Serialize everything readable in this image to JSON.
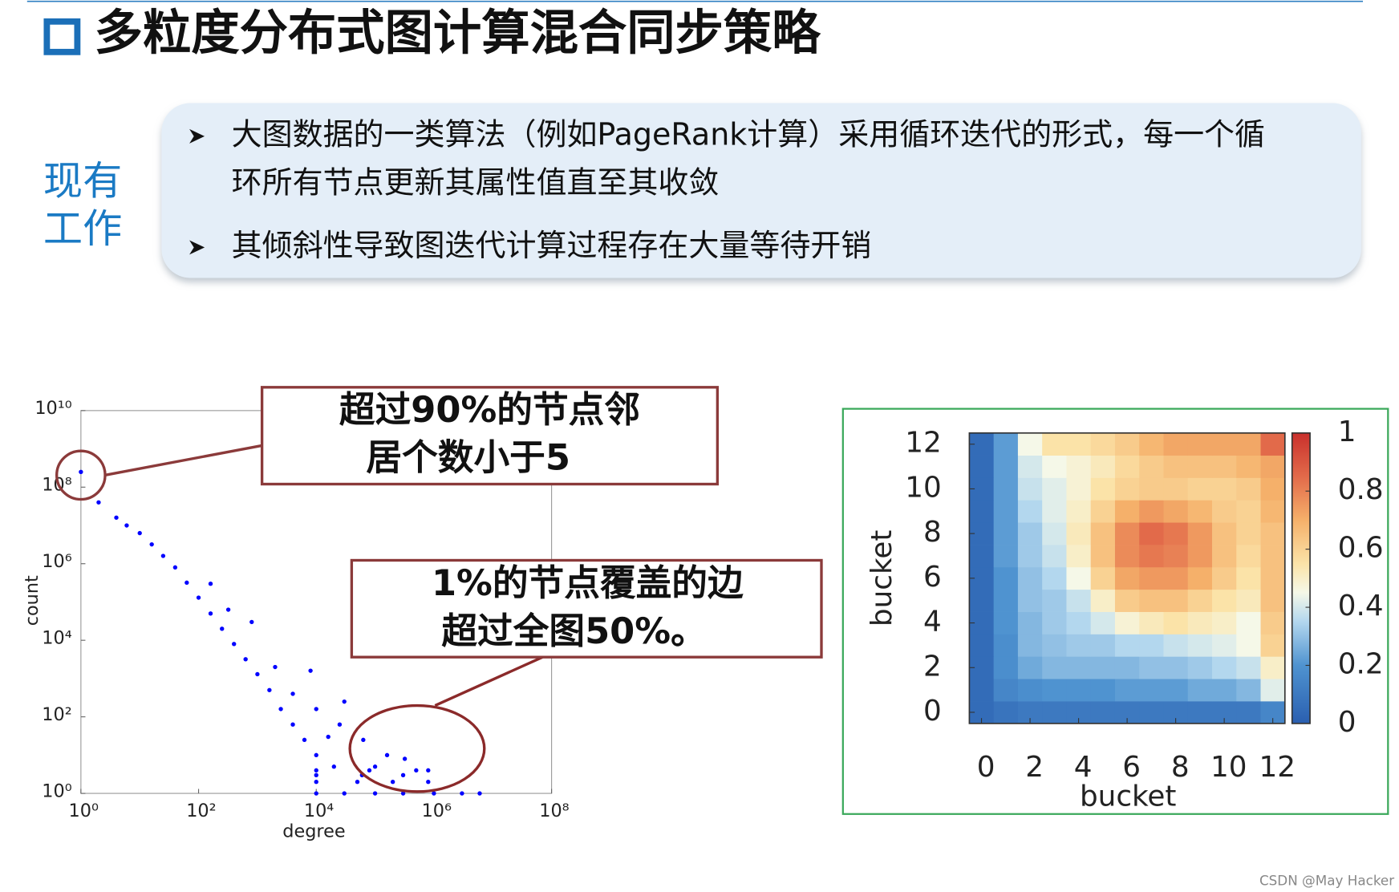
{
  "header": {
    "title": "多粒度分布式图计算混合同步策略"
  },
  "sidebar": [
    "现有",
    "工作"
  ],
  "bullets": [
    [
      "大图数据的一类算法（例如PageRank计算）采用循环迭代的形式，每一个循",
      "环所有节点更新其属性值直至其收敛"
    ],
    [
      "其倾斜性导致图迭代计算过程存在大量等待开销"
    ]
  ],
  "callouts": [
    [
      "超过90%的节点邻",
      "居个数小于5"
    ],
    [
      "1%的节点覆盖的边",
      "超过全图50%。"
    ]
  ],
  "watermark": "CSDN @May Hacker",
  "chart_data": [
    {
      "type": "scatter",
      "x_label": "degree",
      "y_label": "count",
      "log_x": true,
      "log_y": true,
      "color": "#0000ff",
      "xlim": [
        1,
        100000000
      ],
      "ylim": [
        1,
        10000000000
      ],
      "xticks": [
        {
          "value": 1,
          "label": "10⁰"
        },
        {
          "value": 100,
          "label": "10²"
        },
        {
          "value": 10000,
          "label": "10⁴"
        },
        {
          "value": 1000000,
          "label": "10⁶"
        },
        {
          "value": 100000000,
          "label": "10⁸"
        }
      ],
      "yticks": [
        {
          "value": 1,
          "label": "10⁰"
        },
        {
          "value": 100,
          "label": "10²"
        },
        {
          "value": 10000,
          "label": "10⁴"
        },
        {
          "value": 1000000,
          "label": "10⁶"
        },
        {
          "value": 100000000,
          "label": "10⁸"
        },
        {
          "value": 10000000000,
          "label": "10¹⁰"
        }
      ],
      "x": [
        1,
        2,
        4,
        6,
        10,
        16,
        25,
        40,
        63,
        100,
        160,
        250,
        400,
        630,
        1000,
        1600,
        2500,
        4000,
        6300,
        10000,
        160,
        320,
        800,
        2000,
        4000,
        10000,
        25000,
        63000,
        160000,
        320000,
        800000,
        30000,
        8000,
        16000,
        10000,
        30000,
        100000,
        300000,
        1000000,
        3000000,
        6000000,
        10000,
        50000,
        200000,
        800000,
        10000,
        60000,
        300000,
        10000,
        80000,
        500000,
        20000,
        100000
      ],
      "y": [
        250000000,
        40000000,
        16000000,
        10000000,
        6300000,
        3200000,
        1600000,
        800000,
        320000,
        130000,
        50000,
        20000,
        8000,
        3200,
        1300,
        500,
        160,
        63,
        25,
        10,
        300000,
        63000,
        30000,
        2000,
        400,
        160,
        63,
        25,
        10,
        8,
        4,
        250,
        1600,
        30,
        1,
        1,
        1,
        1,
        1,
        1,
        1,
        2,
        2,
        2,
        2,
        3,
        3,
        3,
        4,
        4,
        4,
        5,
        5
      ]
    },
    {
      "type": "heatmap",
      "x_label": "bucket",
      "y_label": "bucket",
      "xlim": [
        -0.5,
        12.5
      ],
      "ylim": [
        -0.5,
        12.5
      ],
      "xticks": [
        0,
        2,
        4,
        6,
        8,
        10,
        12
      ],
      "yticks": [
        0,
        2,
        4,
        6,
        8,
        10,
        12
      ],
      "clim": [
        0,
        1
      ],
      "cticks": [
        0,
        0.2,
        0.4,
        0.6,
        0.8,
        1
      ],
      "colorscale": [
        [
          0,
          "#2a5fb0"
        ],
        [
          0.2,
          "#4f93d0"
        ],
        [
          0.35,
          "#b3d7ee"
        ],
        [
          0.45,
          "#f5f8e8"
        ],
        [
          0.55,
          "#fbe3a8"
        ],
        [
          0.7,
          "#f5b06a"
        ],
        [
          0.85,
          "#e26a4a"
        ],
        [
          1,
          "#c9302c"
        ]
      ],
      "z": [
        [
          0.05,
          0.08,
          0.1,
          0.1,
          0.1,
          0.1,
          0.1,
          0.1,
          0.1,
          0.1,
          0.1,
          0.1,
          0.15
        ],
        [
          0.05,
          0.15,
          0.18,
          0.2,
          0.2,
          0.2,
          0.22,
          0.22,
          0.22,
          0.25,
          0.25,
          0.28,
          0.42
        ],
        [
          0.05,
          0.18,
          0.25,
          0.28,
          0.28,
          0.28,
          0.28,
          0.3,
          0.3,
          0.32,
          0.35,
          0.38,
          0.5
        ],
        [
          0.05,
          0.18,
          0.28,
          0.3,
          0.32,
          0.32,
          0.35,
          0.35,
          0.38,
          0.4,
          0.42,
          0.45,
          0.6
        ],
        [
          0.05,
          0.2,
          0.28,
          0.32,
          0.35,
          0.4,
          0.48,
          0.52,
          0.55,
          0.52,
          0.5,
          0.45,
          0.62
        ],
        [
          0.05,
          0.2,
          0.3,
          0.32,
          0.38,
          0.5,
          0.62,
          0.65,
          0.65,
          0.6,
          0.55,
          0.52,
          0.65
        ],
        [
          0.05,
          0.2,
          0.3,
          0.35,
          0.45,
          0.6,
          0.72,
          0.75,
          0.75,
          0.7,
          0.62,
          0.55,
          0.65
        ],
        [
          0.05,
          0.22,
          0.32,
          0.38,
          0.5,
          0.65,
          0.78,
          0.82,
          0.8,
          0.75,
          0.65,
          0.58,
          0.65
        ],
        [
          0.05,
          0.22,
          0.32,
          0.4,
          0.52,
          0.65,
          0.78,
          0.85,
          0.82,
          0.75,
          0.65,
          0.6,
          0.65
        ],
        [
          0.05,
          0.22,
          0.35,
          0.42,
          0.5,
          0.6,
          0.7,
          0.75,
          0.72,
          0.68,
          0.62,
          0.6,
          0.68
        ],
        [
          0.05,
          0.22,
          0.38,
          0.42,
          0.48,
          0.55,
          0.6,
          0.62,
          0.62,
          0.6,
          0.6,
          0.62,
          0.7
        ],
        [
          0.05,
          0.22,
          0.4,
          0.45,
          0.48,
          0.52,
          0.58,
          0.62,
          0.65,
          0.65,
          0.65,
          0.68,
          0.72
        ],
        [
          0.05,
          0.22,
          0.45,
          0.55,
          0.55,
          0.58,
          0.62,
          0.68,
          0.72,
          0.72,
          0.72,
          0.72,
          0.85
        ]
      ]
    }
  ]
}
